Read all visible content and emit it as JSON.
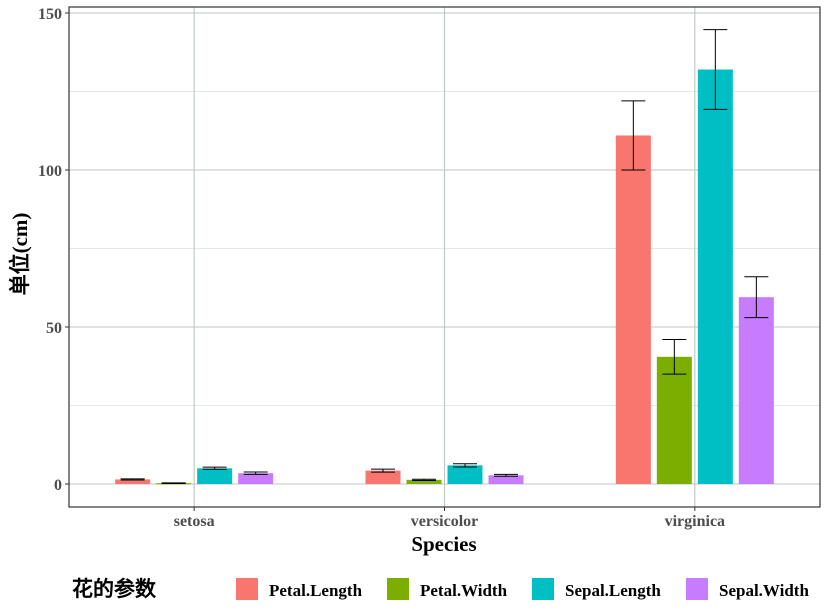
{
  "chart_data": {
    "type": "bar",
    "categories": [
      "setosa",
      "versicolor",
      "virginica"
    ],
    "series": [
      {
        "name": "Petal.Length",
        "color": "#F8766D",
        "values": [
          1.46,
          4.26,
          111.0
        ],
        "err": [
          0.17,
          0.47,
          11.0
        ]
      },
      {
        "name": "Petal.Width",
        "color": "#7CAE00",
        "values": [
          0.25,
          1.33,
          40.5
        ],
        "err": [
          0.11,
          0.2,
          5.5
        ]
      },
      {
        "name": "Sepal.Length",
        "color": "#00BFC4",
        "values": [
          5.01,
          5.94,
          132.0
        ],
        "err": [
          0.35,
          0.52,
          12.7
        ]
      },
      {
        "name": "Sepal.Width",
        "color": "#C77CFF",
        "values": [
          3.43,
          2.77,
          59.5
        ],
        "err": [
          0.38,
          0.31,
          6.5
        ]
      }
    ],
    "xlabel": "Species",
    "ylabel": "单位(cm)",
    "ylim": [
      -7.5,
      150
    ],
    "yticks": [
      0,
      50,
      100,
      150
    ],
    "grid": true,
    "legend": {
      "title": "花的参数",
      "placement": "bottom"
    }
  }
}
